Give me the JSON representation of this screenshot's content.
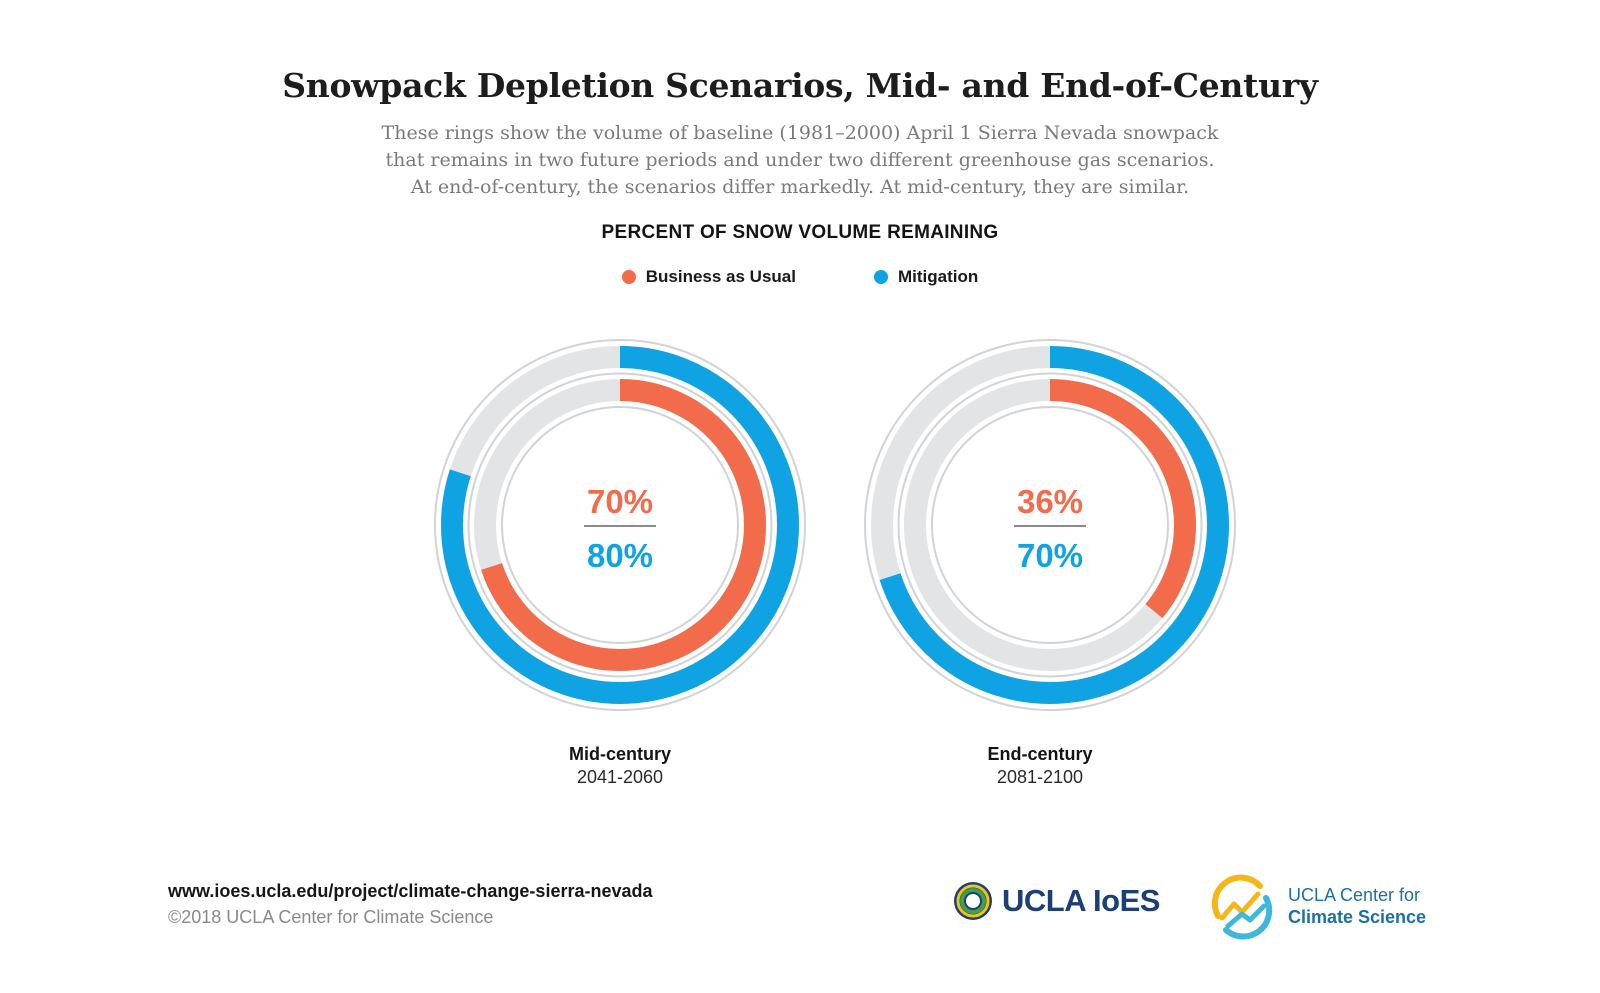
{
  "header": {
    "title": "Snowpack Depletion Scenarios, Mid- and End-of-Century",
    "subtitle_lines": [
      "These rings show the volume of baseline (1981–2000) April 1 Sierra Nevada snowpack",
      "that remains in two future periods and under two different greenhouse gas scenarios.",
      "At end-of-century, the scenarios differ markedly. At mid-century, they are similar."
    ]
  },
  "chart_data": {
    "type": "donut",
    "title": "PERCENT OF SNOW VOLUME REMAINING",
    "legend_placement": "top-center",
    "series": [
      {
        "name": "Business as Usual",
        "color": "#f26b4a",
        "ring": "inner"
      },
      {
        "name": "Mitigation",
        "color": "#0fa3e3",
        "ring": "outer"
      }
    ],
    "track_color": "#e3e4e6",
    "panels": [
      {
        "period": "Mid-century",
        "years": "2041-2060",
        "values": {
          "Business as Usual": 70,
          "Mitigation": 80
        },
        "labels": {
          "Business as Usual": "70%",
          "Mitigation": "80%"
        }
      },
      {
        "period": "End-century",
        "years": "2081-2100",
        "values": {
          "Business as Usual": 36,
          "Mitigation": 70
        },
        "labels": {
          "Business as Usual": "36%",
          "Mitigation": "70%"
        }
      }
    ]
  },
  "footer": {
    "url": "www.ioes.ucla.edu/project/climate-change-sierra-nevada",
    "copyright": "©2018 UCLA Center for Climate Science",
    "logo_ioes": "UCLA IoES",
    "logo_ccs_line1": "UCLA Center for",
    "logo_ccs_line2": "Climate Science"
  }
}
